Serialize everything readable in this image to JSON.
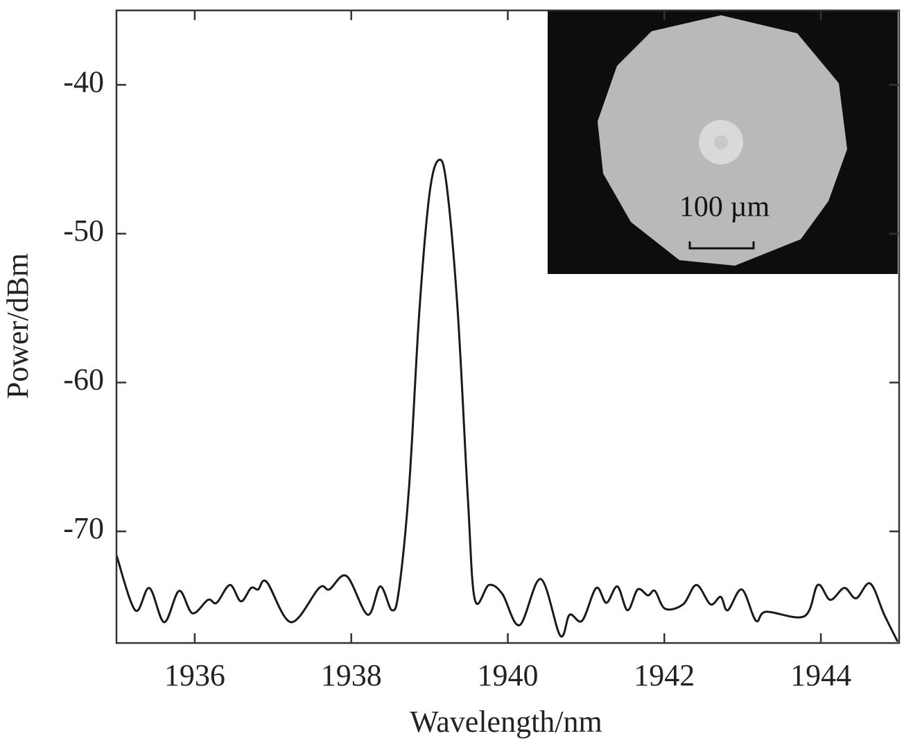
{
  "chart_data": {
    "type": "line",
    "xlabel": "Wavelength/nm",
    "ylabel": "Power/dBm",
    "inset_label": "100 µm",
    "xlim": [
      1935,
      1945
    ],
    "ylim": [
      -77.5,
      -35
    ],
    "xticks": [
      1936,
      1938,
      1940,
      1942,
      1944
    ],
    "yticks": [
      -40,
      -50,
      -60,
      -70
    ],
    "series": [
      {
        "color": "#1a1a1a",
        "x": [
          1935.0,
          1935.24,
          1935.42,
          1935.61,
          1935.8,
          1935.97,
          1936.17,
          1936.28,
          1936.45,
          1936.59,
          1936.72,
          1936.81,
          1936.92,
          1937.23,
          1937.59,
          1937.72,
          1937.94,
          1938.21,
          1938.37,
          1938.52,
          1938.61,
          1938.74,
          1938.87,
          1939.0,
          1939.12,
          1939.22,
          1939.36,
          1939.49,
          1939.58,
          1939.76,
          1939.93,
          1940.15,
          1940.42,
          1940.67,
          1940.79,
          1940.95,
          1941.13,
          1941.26,
          1941.4,
          1941.53,
          1941.66,
          1941.79,
          1941.88,
          1942.01,
          1942.24,
          1942.41,
          1942.59,
          1942.72,
          1942.81,
          1942.99,
          1943.17,
          1943.3,
          1943.79,
          1943.96,
          1944.12,
          1944.3,
          1944.45,
          1944.63,
          1944.81,
          1944.98
        ],
        "values": [
          -71.6,
          -75.3,
          -73.8,
          -76.1,
          -74.0,
          -75.5,
          -74.6,
          -74.8,
          -73.6,
          -74.7,
          -73.8,
          -73.9,
          -73.4,
          -76.1,
          -73.8,
          -73.9,
          -73.0,
          -75.6,
          -73.7,
          -75.3,
          -73.9,
          -66.9,
          -55.2,
          -47.3,
          -45.05,
          -46.8,
          -55.2,
          -67.8,
          -74.6,
          -73.6,
          -74.2,
          -76.3,
          -73.2,
          -77.0,
          -75.6,
          -76.0,
          -73.8,
          -74.8,
          -73.7,
          -75.3,
          -73.9,
          -74.3,
          -74.0,
          -75.2,
          -74.9,
          -73.6,
          -74.9,
          -74.4,
          -75.3,
          -73.9,
          -76.0,
          -75.4,
          -75.7,
          -73.6,
          -74.6,
          -73.8,
          -74.5,
          -73.5,
          -75.6,
          -77.4
        ]
      }
    ]
  }
}
